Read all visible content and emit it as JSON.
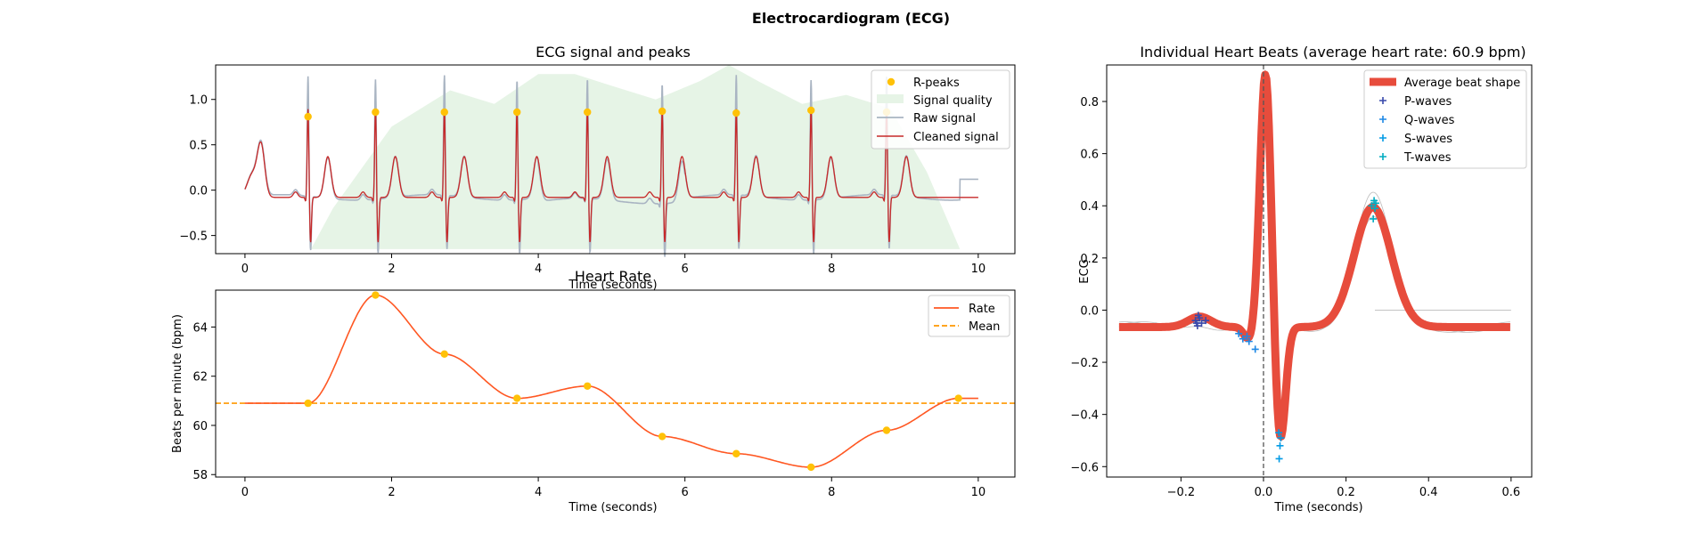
{
  "figure_title": "Electrocardiogram (ECG)",
  "chart_data": [
    {
      "type": "line",
      "title": "ECG signal and peaks",
      "xlabel": "Time (seconds)",
      "ylabel": "",
      "xlim": [
        -0.4,
        10.5
      ],
      "ylim": [
        -0.7,
        1.38
      ],
      "xticks": [
        0,
        2,
        4,
        6,
        8,
        10
      ],
      "yticks": [
        -0.5,
        0.0,
        0.5,
        1.0
      ],
      "legend_position": "upper right",
      "legend": [
        "R-peaks",
        "Signal quality",
        "Raw signal",
        "Cleaned signal"
      ],
      "r_peaks": {
        "name": "R-peaks",
        "color": "#FFC107",
        "x": [
          0.86,
          1.78,
          2.72,
          3.71,
          4.67,
          5.69,
          6.7,
          7.72,
          8.75
        ],
        "y": [
          0.81,
          0.86,
          0.86,
          0.86,
          0.86,
          0.87,
          0.85,
          0.88,
          0.86
        ]
      },
      "signal_quality": {
        "name": "Signal quality",
        "color": "#e6f4e6",
        "x": [
          0.9,
          1.2,
          2.0,
          2.8,
          3.4,
          4.0,
          4.5,
          5.0,
          5.6,
          6.2,
          6.6,
          7.0,
          7.6,
          8.2,
          8.8,
          9.3,
          9.75
        ],
        "y": [
          -0.65,
          -0.2,
          0.7,
          1.1,
          0.95,
          1.28,
          1.28,
          1.15,
          1.0,
          1.2,
          1.38,
          1.2,
          0.95,
          1.05,
          0.9,
          0.2,
          -0.65
        ]
      },
      "raw_signal": {
        "name": "Raw signal",
        "color": "#a9b4c2"
      },
      "cleaned_signal": {
        "name": "Cleaned signal",
        "color": "#c62828"
      }
    },
    {
      "type": "line",
      "title": "Heart Rate",
      "xlabel": "Time (seconds)",
      "ylabel": "Beats per minute (bpm)",
      "xlim": [
        -0.4,
        10.5
      ],
      "ylim": [
        57.9,
        65.5
      ],
      "xticks": [
        0,
        2,
        4,
        6,
        8,
        10
      ],
      "yticks": [
        58,
        60,
        62,
        64
      ],
      "legend_position": "upper right",
      "legend": [
        "Rate",
        "Mean"
      ],
      "rate_points": {
        "name": "Rate",
        "color": "#FF5722",
        "x": [
          0.86,
          1.78,
          2.72,
          3.71,
          4.67,
          5.69,
          6.7,
          7.72,
          8.75,
          9.73
        ],
        "y": [
          60.9,
          65.3,
          62.9,
          61.1,
          61.6,
          59.55,
          58.85,
          58.3,
          59.8,
          61.1
        ]
      },
      "rate_start": [
        0.0,
        60.9
      ],
      "rate_end": [
        10.0,
        61.1
      ],
      "mean": {
        "name": "Mean",
        "value": 60.9,
        "color": "#FF9800"
      }
    },
    {
      "type": "line",
      "title": "Individual Heart Beats (average heart rate: 60.9 bpm)",
      "xlabel": "Time (seconds)",
      "ylabel": "ECG",
      "xlim": [
        -0.38,
        0.65
      ],
      "ylim": [
        -0.64,
        0.94
      ],
      "xticks": [
        -0.2,
        0.0,
        0.2,
        0.4,
        0.6
      ],
      "yticks": [
        -0.6,
        -0.4,
        -0.2,
        0.0,
        0.2,
        0.4,
        0.6,
        0.8
      ],
      "legend_position": "upper right",
      "legend": [
        "Average beat shape",
        "P-waves",
        "Q-waves",
        "S-waves",
        "T-waves"
      ],
      "average_beat": {
        "name": "Average beat shape",
        "color": "#e74c3c"
      },
      "p_waves": {
        "name": "P-waves",
        "color": "#3949ab",
        "x": [
          -0.165,
          -0.155,
          -0.16,
          -0.15,
          -0.14,
          -0.158,
          -0.162
        ],
        "y": [
          -0.04,
          -0.03,
          -0.06,
          -0.05,
          -0.04,
          -0.02,
          -0.05
        ]
      },
      "q_waves": {
        "name": "Q-waves",
        "color": "#1e88e5",
        "x": [
          -0.06,
          -0.04,
          -0.02,
          -0.05,
          -0.035
        ],
        "y": [
          -0.09,
          -0.1,
          -0.15,
          -0.11,
          -0.12
        ]
      },
      "s_waves": {
        "name": "S-waves",
        "color": "#039be5",
        "x": [
          0.037,
          0.04,
          0.038,
          0.042
        ],
        "y": [
          -0.47,
          -0.52,
          -0.57,
          -0.49
        ]
      },
      "t_waves": {
        "name": "T-waves",
        "color": "#00acc1",
        "x": [
          0.262,
          0.268,
          0.272,
          0.266,
          0.27
        ],
        "y": [
          0.4,
          0.42,
          0.41,
          0.35,
          0.39
        ]
      },
      "vline_x": 0.0
    }
  ]
}
